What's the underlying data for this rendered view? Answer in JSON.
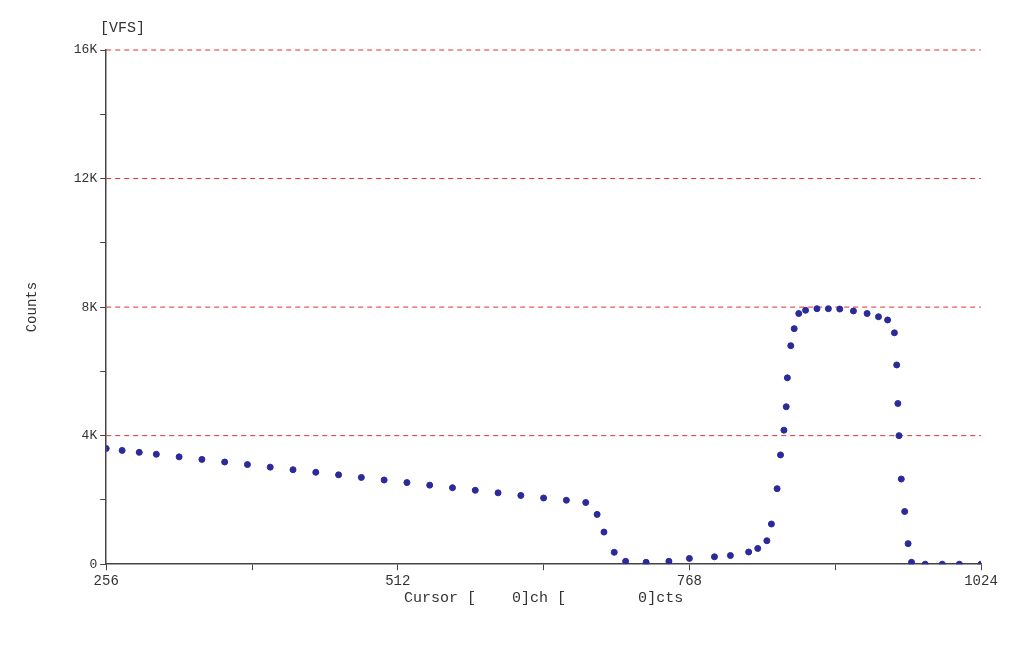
{
  "chart_data": {
    "type": "scatter",
    "ylabel": "Counts",
    "xlabel": "Cursor [    0]ch [        0]cts",
    "annotations": [
      "[VFS]"
    ],
    "x": [
      256,
      270,
      285,
      300,
      320,
      340,
      360,
      380,
      400,
      420,
      440,
      460,
      480,
      500,
      520,
      540,
      560,
      580,
      600,
      620,
      640,
      660,
      677,
      687,
      693,
      702,
      712,
      730,
      750,
      768,
      790,
      804,
      820,
      828,
      836,
      840,
      845,
      848,
      851,
      853,
      854,
      857,
      860,
      864,
      870,
      880,
      890,
      900,
      912,
      924,
      934,
      942,
      948,
      950,
      951,
      952,
      954,
      957,
      960,
      963,
      975,
      990,
      1005,
      1024
    ],
    "series": [
      {
        "color": "#2a2a9a",
        "values": [
          3600,
          3540,
          3480,
          3420,
          3340,
          3260,
          3180,
          3100,
          3020,
          2940,
          2860,
          2780,
          2700,
          2620,
          2540,
          2460,
          2380,
          2300,
          2220,
          2140,
          2060,
          1990,
          1920,
          1550,
          1000,
          370,
          90,
          60,
          90,
          180,
          230,
          270,
          380,
          490,
          730,
          1250,
          2350,
          3400,
          4170,
          4900,
          5800,
          6800,
          7330,
          7800,
          7900,
          7950,
          7950,
          7940,
          7880,
          7800,
          7700,
          7600,
          7200,
          6200,
          5000,
          4000,
          2650,
          1640,
          640,
          60,
          0,
          0,
          0,
          0
        ]
      }
    ],
    "xlim": [
      256,
      1024
    ],
    "ylim": [
      0,
      16000
    ],
    "xticks": [
      256,
      {
        "value": 384,
        "label": null
      },
      512,
      {
        "value": 640,
        "label": null
      },
      768,
      {
        "value": 896,
        "label": null
      },
      1024
    ],
    "yticks": [
      0,
      {
        "value": 2000,
        "label": null
      },
      {
        "value": 4000,
        "label": "4K"
      },
      {
        "value": 6000,
        "label": null
      },
      {
        "value": 8000,
        "label": "8K"
      },
      {
        "value": 10000,
        "label": null
      },
      {
        "value": 12000,
        "label": "12K"
      },
      {
        "value": 14000,
        "label": null
      },
      {
        "value": 16000,
        "label": "16K"
      }
    ],
    "grid": "y",
    "marker": "circle",
    "legend": false
  }
}
